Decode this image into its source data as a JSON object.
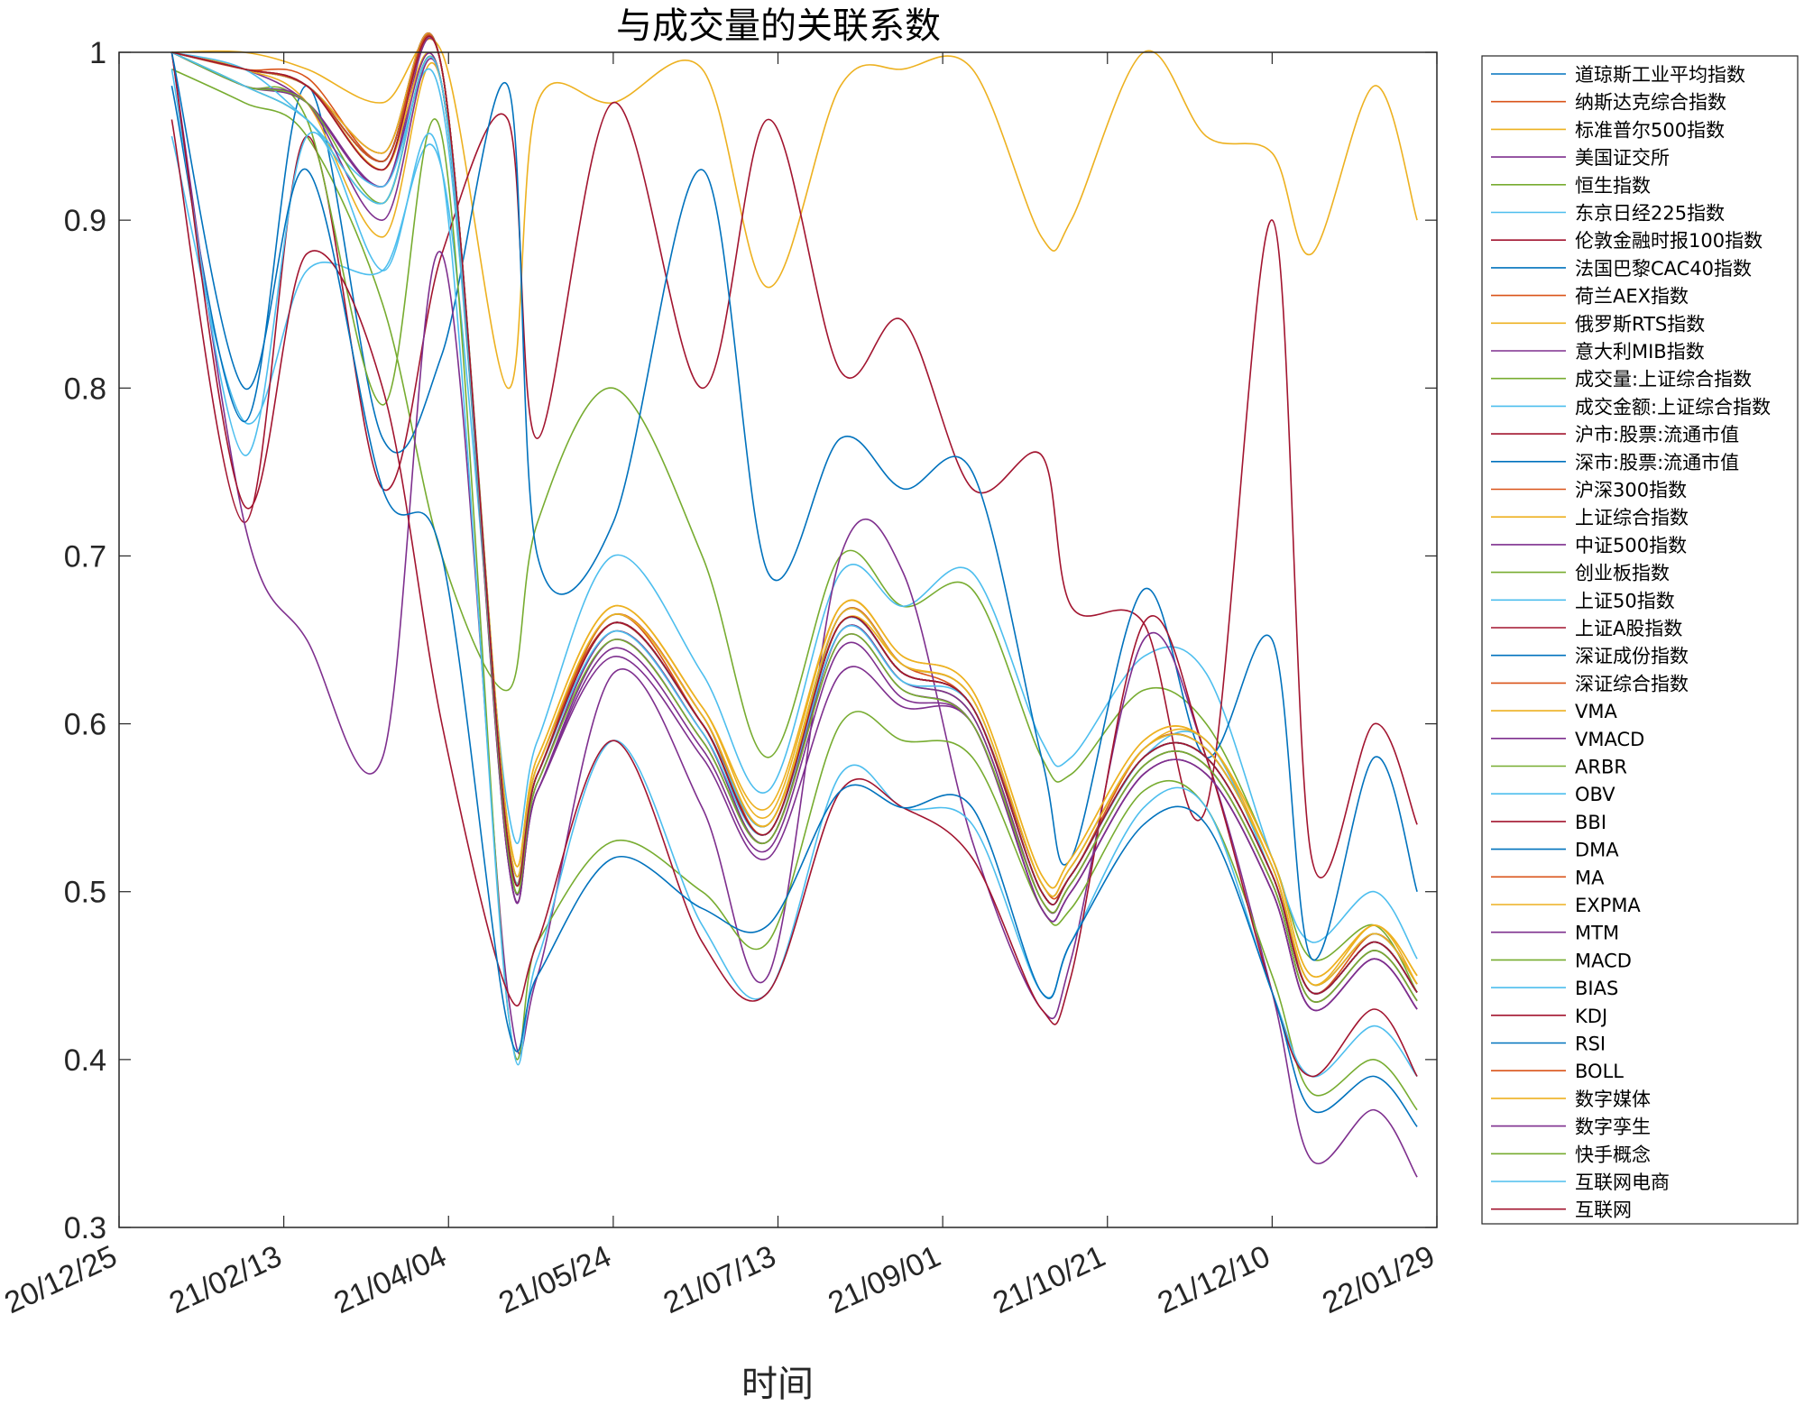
{
  "chart_data": {
    "type": "line",
    "title": "与成交量的关联系数",
    "xlabel": "时间",
    "ylabel": "",
    "ylim": [
      0.3,
      1.0
    ],
    "y_ticks": [
      "0.3",
      "0.4",
      "0.5",
      "0.6",
      "0.7",
      "0.8",
      "0.9",
      "1"
    ],
    "x_ticks": [
      "20/12/25",
      "21/02/13",
      "21/04/04",
      "21/05/24",
      "21/07/13",
      "21/09/01",
      "21/10/21",
      "21/12/10",
      "22/01/29"
    ],
    "x_tick_dates": [
      "2020-12-25",
      "2021-02-13",
      "2021-04-04",
      "2021-05-24",
      "2021-07-13",
      "2021-09-01",
      "2021-10-21",
      "2021-12-10",
      "2022-01-29"
    ],
    "legend_position": "outside-right",
    "grid": false,
    "x": [
      "2021-01-10",
      "2021-02-01",
      "2021-02-20",
      "2021-03-15",
      "2021-04-02",
      "2021-04-22",
      "2021-05-01",
      "2021-05-24",
      "2021-06-20",
      "2021-07-10",
      "2021-08-01",
      "2021-08-20",
      "2021-09-10",
      "2021-10-01",
      "2021-10-10",
      "2021-11-01",
      "2021-11-20",
      "2021-12-10",
      "2021-12-22",
      "2022-01-10",
      "2022-01-23"
    ],
    "series": [
      {
        "name": "道琼斯工业平均指数",
        "color": "#0072BD",
        "values": [
          1.0,
          0.99,
          0.98,
          0.94,
          0.99,
          0.53,
          0.57,
          0.66,
          0.6,
          0.54,
          0.66,
          0.63,
          0.61,
          0.5,
          0.51,
          0.58,
          0.58,
          0.51,
          0.44,
          0.47,
          0.44
        ]
      },
      {
        "name": "纳斯达克综合指数",
        "color": "#D95319",
        "values": [
          1.0,
          0.99,
          0.98,
          0.93,
          0.99,
          0.53,
          0.57,
          0.665,
          0.605,
          0.535,
          0.665,
          0.635,
          0.61,
          0.505,
          0.51,
          0.585,
          0.585,
          0.515,
          0.44,
          0.475,
          0.445
        ]
      },
      {
        "name": "标准普尔500指数",
        "color": "#EDB120",
        "values": [
          1.0,
          1.0,
          0.99,
          0.97,
          1.0,
          0.8,
          0.97,
          0.97,
          0.99,
          0.86,
          0.98,
          0.99,
          0.99,
          0.89,
          0.9,
          1.0,
          0.95,
          0.94,
          0.88,
          0.98,
          0.9
        ]
      },
      {
        "name": "美国证交所",
        "color": "#7E2F8E",
        "values": [
          1.0,
          0.99,
          0.97,
          0.92,
          0.99,
          0.52,
          0.56,
          0.64,
          0.58,
          0.52,
          0.63,
          0.61,
          0.6,
          0.49,
          0.5,
          0.57,
          0.57,
          0.5,
          0.43,
          0.46,
          0.43
        ]
      },
      {
        "name": "恒生指数",
        "color": "#77AC30",
        "values": [
          0.99,
          0.97,
          0.95,
          0.85,
          0.7,
          0.62,
          0.72,
          0.8,
          0.7,
          0.58,
          0.7,
          0.67,
          0.68,
          0.58,
          0.57,
          0.62,
          0.6,
          0.52,
          0.46,
          0.48,
          0.44
        ]
      },
      {
        "name": "东京日经225指数",
        "color": "#4DBEEE",
        "values": [
          0.95,
          0.78,
          0.87,
          0.87,
          0.93,
          0.55,
          0.59,
          0.7,
          0.63,
          0.56,
          0.69,
          0.67,
          0.69,
          0.59,
          0.58,
          0.64,
          0.63,
          0.52,
          0.47,
          0.5,
          0.46
        ]
      },
      {
        "name": "伦敦金融时报100指数",
        "color": "#A2142F",
        "values": [
          0.96,
          0.72,
          0.95,
          0.74,
          0.88,
          0.96,
          0.77,
          0.97,
          0.8,
          0.96,
          0.81,
          0.84,
          0.74,
          0.76,
          0.67,
          0.66,
          0.55,
          0.9,
          0.52,
          0.6,
          0.54
        ]
      },
      {
        "name": "法国巴黎CAC40指数",
        "color": "#0072BD",
        "values": [
          0.98,
          0.78,
          0.98,
          0.77,
          0.82,
          0.98,
          0.7,
          0.72,
          0.93,
          0.69,
          0.77,
          0.74,
          0.75,
          0.58,
          0.52,
          0.68,
          0.58,
          0.65,
          0.46,
          0.58,
          0.5
        ]
      },
      {
        "name": "荷兰AEX指数",
        "color": "#D95319",
        "values": [
          1.0,
          0.99,
          0.985,
          0.935,
          0.99,
          0.53,
          0.575,
          0.66,
          0.6,
          0.535,
          0.66,
          0.63,
          0.61,
          0.5,
          0.51,
          0.58,
          0.58,
          0.51,
          0.44,
          0.47,
          0.44
        ]
      },
      {
        "name": "俄罗斯RTS指数",
        "color": "#EDB120",
        "values": [
          1.0,
          0.99,
          0.97,
          0.89,
          0.98,
          0.54,
          0.58,
          0.67,
          0.61,
          0.55,
          0.67,
          0.64,
          0.62,
          0.51,
          0.52,
          0.59,
          0.59,
          0.52,
          0.45,
          0.48,
          0.45
        ]
      },
      {
        "name": "意大利MIB指数",
        "color": "#7E2F8E",
        "values": [
          1.0,
          0.72,
          0.65,
          0.58,
          0.88,
          0.44,
          0.45,
          0.63,
          0.55,
          0.45,
          0.7,
          0.69,
          0.53,
          0.43,
          0.46,
          0.65,
          0.58,
          0.44,
          0.34,
          0.37,
          0.33
        ]
      },
      {
        "name": "成交量:上证综合指数",
        "color": "#77AC30",
        "values": [
          1.0,
          0.98,
          0.96,
          0.79,
          0.95,
          0.43,
          0.47,
          0.53,
          0.5,
          0.47,
          0.6,
          0.59,
          0.58,
          0.49,
          0.49,
          0.56,
          0.55,
          0.45,
          0.38,
          0.4,
          0.37
        ]
      },
      {
        "name": "成交金额:上证综合指数",
        "color": "#4DBEEE",
        "values": [
          0.99,
          0.76,
          0.95,
          0.87,
          0.93,
          0.43,
          0.46,
          0.59,
          0.48,
          0.44,
          0.57,
          0.55,
          0.54,
          0.44,
          0.47,
          0.55,
          0.55,
          0.44,
          0.39,
          0.42,
          0.39
        ]
      },
      {
        "name": "沪市:股票:流通市值",
        "color": "#A2142F",
        "values": [
          1.0,
          0.73,
          0.88,
          0.8,
          0.6,
          0.44,
          0.47,
          0.59,
          0.47,
          0.44,
          0.56,
          0.55,
          0.52,
          0.43,
          0.45,
          0.66,
          0.58,
          0.44,
          0.39,
          0.43,
          0.39
        ]
      },
      {
        "name": "深市:股票:流通市值",
        "color": "#0072BD",
        "values": [
          1.0,
          0.8,
          0.93,
          0.74,
          0.7,
          0.42,
          0.45,
          0.52,
          0.49,
          0.48,
          0.56,
          0.55,
          0.55,
          0.44,
          0.47,
          0.54,
          0.54,
          0.44,
          0.37,
          0.39,
          0.36
        ]
      },
      {
        "name": "沪深300指数",
        "color": "#D95319",
        "values": [
          1.0,
          0.99,
          0.98,
          0.94,
          0.99,
          0.53,
          0.57,
          0.665,
          0.6,
          0.535,
          0.66,
          0.63,
          0.61,
          0.5,
          0.51,
          0.58,
          0.58,
          0.51,
          0.44,
          0.47,
          0.44
        ]
      },
      {
        "name": "上证综合指数",
        "color": "#EDB120",
        "values": [
          1.0,
          0.99,
          0.98,
          0.93,
          0.98,
          0.54,
          0.58,
          0.67,
          0.61,
          0.545,
          0.67,
          0.64,
          0.62,
          0.51,
          0.52,
          0.59,
          0.59,
          0.52,
          0.45,
          0.48,
          0.45
        ]
      },
      {
        "name": "中证500指数",
        "color": "#7E2F8E",
        "values": [
          1.0,
          0.98,
          0.97,
          0.92,
          0.98,
          0.52,
          0.56,
          0.65,
          0.59,
          0.53,
          0.65,
          0.62,
          0.6,
          0.49,
          0.5,
          0.57,
          0.57,
          0.5,
          0.43,
          0.46,
          0.43
        ]
      },
      {
        "name": "创业板指数",
        "color": "#77AC30",
        "values": [
          1.0,
          0.98,
          0.96,
          0.91,
          0.98,
          0.525,
          0.565,
          0.655,
          0.595,
          0.53,
          0.655,
          0.625,
          0.605,
          0.495,
          0.505,
          0.575,
          0.575,
          0.505,
          0.435,
          0.465,
          0.435
        ]
      },
      {
        "name": "上证50指数",
        "color": "#4DBEEE",
        "values": [
          1.0,
          0.99,
          0.96,
          0.92,
          0.97,
          0.53,
          0.57,
          0.66,
          0.6,
          0.54,
          0.66,
          0.63,
          0.61,
          0.5,
          0.51,
          0.58,
          0.59,
          0.51,
          0.44,
          0.47,
          0.44
        ]
      },
      {
        "name": "上证A股指数",
        "color": "#A2142F",
        "values": [
          1.0,
          0.99,
          0.98,
          0.935,
          0.99,
          0.53,
          0.57,
          0.66,
          0.6,
          0.535,
          0.66,
          0.63,
          0.61,
          0.5,
          0.51,
          0.58,
          0.58,
          0.51,
          0.44,
          0.47,
          0.44
        ]
      },
      {
        "name": "深证成份指数",
        "color": "#0072BD",
        "values": [
          1.0,
          0.99,
          0.98,
          0.935,
          0.99,
          0.535,
          0.575,
          0.665,
          0.605,
          0.54,
          0.665,
          0.635,
          0.615,
          0.505,
          0.515,
          0.585,
          0.585,
          0.515,
          0.445,
          0.475,
          0.445
        ]
      },
      {
        "name": "深证综合指数",
        "color": "#D95319",
        "values": [
          1.0,
          0.99,
          0.98,
          0.935,
          0.99,
          0.53,
          0.57,
          0.66,
          0.6,
          0.535,
          0.66,
          0.63,
          0.61,
          0.5,
          0.51,
          0.58,
          0.58,
          0.51,
          0.44,
          0.47,
          0.44
        ]
      },
      {
        "name": "VMA",
        "color": "#EDB120",
        "values": [
          1.0,
          0.99,
          0.98,
          0.94,
          0.99,
          0.535,
          0.575,
          0.665,
          0.605,
          0.54,
          0.665,
          0.635,
          0.615,
          0.505,
          0.515,
          0.585,
          0.59,
          0.515,
          0.445,
          0.48,
          0.445
        ]
      },
      {
        "name": "VMACD",
        "color": "#7E2F8E",
        "values": [
          1.0,
          0.99,
          0.98,
          0.93,
          0.99,
          0.525,
          0.565,
          0.655,
          0.595,
          0.53,
          0.655,
          0.625,
          0.605,
          0.495,
          0.505,
          0.575,
          0.575,
          0.505,
          0.435,
          0.465,
          0.435
        ]
      },
      {
        "name": "ARBR",
        "color": "#77AC30",
        "values": [
          1.0,
          0.99,
          0.98,
          0.935,
          0.99,
          0.53,
          0.57,
          0.66,
          0.6,
          0.535,
          0.66,
          0.63,
          0.61,
          0.5,
          0.51,
          0.58,
          0.58,
          0.51,
          0.44,
          0.47,
          0.44
        ]
      },
      {
        "name": "OBV",
        "color": "#4DBEEE",
        "values": [
          1.0,
          0.99,
          0.98,
          0.935,
          0.99,
          0.53,
          0.57,
          0.66,
          0.6,
          0.535,
          0.66,
          0.63,
          0.61,
          0.5,
          0.51,
          0.58,
          0.58,
          0.51,
          0.44,
          0.47,
          0.44
        ]
      },
      {
        "name": "BBI",
        "color": "#A2142F",
        "values": [
          1.0,
          0.99,
          0.98,
          0.935,
          0.99,
          0.53,
          0.57,
          0.66,
          0.6,
          0.535,
          0.66,
          0.63,
          0.61,
          0.5,
          0.51,
          0.58,
          0.58,
          0.51,
          0.44,
          0.47,
          0.44
        ]
      },
      {
        "name": "DMA",
        "color": "#0072BD",
        "values": [
          1.0,
          0.99,
          0.98,
          0.935,
          0.99,
          0.53,
          0.57,
          0.66,
          0.6,
          0.535,
          0.66,
          0.63,
          0.61,
          0.5,
          0.51,
          0.58,
          0.58,
          0.51,
          0.44,
          0.47,
          0.44
        ]
      },
      {
        "name": "MA",
        "color": "#D95319",
        "values": [
          1.0,
          0.99,
          0.98,
          0.935,
          0.99,
          0.53,
          0.57,
          0.66,
          0.6,
          0.535,
          0.66,
          0.63,
          0.61,
          0.5,
          0.51,
          0.58,
          0.58,
          0.51,
          0.44,
          0.47,
          0.44
        ]
      },
      {
        "name": "EXPMA",
        "color": "#EDB120",
        "values": [
          1.0,
          0.99,
          0.98,
          0.935,
          0.99,
          0.53,
          0.57,
          0.66,
          0.6,
          0.535,
          0.66,
          0.63,
          0.61,
          0.5,
          0.51,
          0.58,
          0.58,
          0.51,
          0.44,
          0.47,
          0.44
        ]
      },
      {
        "name": "MTM",
        "color": "#7E2F8E",
        "values": [
          1.0,
          0.99,
          0.98,
          0.935,
          0.99,
          0.53,
          0.57,
          0.66,
          0.6,
          0.535,
          0.66,
          0.63,
          0.61,
          0.5,
          0.51,
          0.58,
          0.58,
          0.51,
          0.44,
          0.47,
          0.44
        ]
      },
      {
        "name": "MACD",
        "color": "#77AC30",
        "values": [
          1.0,
          0.99,
          0.98,
          0.935,
          0.99,
          0.53,
          0.57,
          0.66,
          0.6,
          0.535,
          0.66,
          0.63,
          0.61,
          0.5,
          0.51,
          0.58,
          0.58,
          0.51,
          0.44,
          0.47,
          0.44
        ]
      },
      {
        "name": "BIAS",
        "color": "#4DBEEE",
        "values": [
          1.0,
          0.99,
          0.98,
          0.935,
          0.99,
          0.53,
          0.57,
          0.66,
          0.6,
          0.535,
          0.66,
          0.63,
          0.61,
          0.5,
          0.51,
          0.58,
          0.58,
          0.51,
          0.44,
          0.47,
          0.44
        ]
      },
      {
        "name": "KDJ",
        "color": "#A2142F",
        "values": [
          1.0,
          0.99,
          0.98,
          0.935,
          0.99,
          0.53,
          0.57,
          0.66,
          0.6,
          0.535,
          0.66,
          0.63,
          0.61,
          0.5,
          0.51,
          0.58,
          0.58,
          0.51,
          0.44,
          0.47,
          0.44
        ]
      },
      {
        "name": "RSI",
        "color": "#0072BD",
        "values": [
          1.0,
          0.99,
          0.98,
          0.935,
          0.99,
          0.53,
          0.57,
          0.66,
          0.6,
          0.535,
          0.66,
          0.63,
          0.61,
          0.5,
          0.51,
          0.58,
          0.58,
          0.51,
          0.44,
          0.47,
          0.44
        ]
      },
      {
        "name": "BOLL",
        "color": "#D95319",
        "values": [
          1.0,
          0.99,
          0.98,
          0.935,
          0.99,
          0.53,
          0.57,
          0.66,
          0.6,
          0.535,
          0.66,
          0.63,
          0.61,
          0.5,
          0.51,
          0.58,
          0.58,
          0.51,
          0.44,
          0.47,
          0.44
        ]
      },
      {
        "name": "数字媒体",
        "color": "#EDB120",
        "values": [
          1.0,
          0.99,
          0.98,
          0.93,
          0.99,
          0.53,
          0.575,
          0.665,
          0.605,
          0.54,
          0.66,
          0.635,
          0.615,
          0.505,
          0.515,
          0.585,
          0.585,
          0.515,
          0.445,
          0.475,
          0.445
        ]
      },
      {
        "name": "数字孪生",
        "color": "#7E2F8E",
        "values": [
          1.0,
          0.98,
          0.97,
          0.9,
          0.98,
          0.52,
          0.56,
          0.645,
          0.585,
          0.525,
          0.645,
          0.615,
          0.6,
          0.49,
          0.5,
          0.57,
          0.57,
          0.5,
          0.43,
          0.46,
          0.43
        ]
      },
      {
        "name": "快手概念",
        "color": "#77AC30",
        "values": [
          1.0,
          0.98,
          0.97,
          0.91,
          0.98,
          0.525,
          0.565,
          0.65,
          0.59,
          0.53,
          0.65,
          0.62,
          0.6,
          0.495,
          0.505,
          0.575,
          0.575,
          0.505,
          0.435,
          0.465,
          0.435
        ]
      },
      {
        "name": "互联网电商",
        "color": "#4DBEEE",
        "values": [
          1.0,
          0.98,
          0.96,
          0.91,
          0.98,
          0.53,
          0.57,
          0.655,
          0.595,
          0.535,
          0.655,
          0.625,
          0.61,
          0.5,
          0.51,
          0.58,
          0.58,
          0.51,
          0.44,
          0.47,
          0.44
        ]
      },
      {
        "name": "互联网",
        "color": "#A2142F",
        "values": [
          1.0,
          0.99,
          0.98,
          0.93,
          0.99,
          0.53,
          0.57,
          0.66,
          0.6,
          0.535,
          0.66,
          0.63,
          0.61,
          0.5,
          0.51,
          0.58,
          0.58,
          0.51,
          0.44,
          0.47,
          0.44
        ]
      }
    ]
  }
}
